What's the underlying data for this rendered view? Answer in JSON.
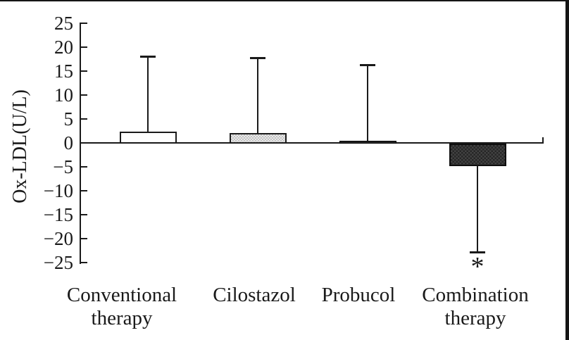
{
  "chart_data": {
    "type": "bar",
    "title": "",
    "xlabel": "",
    "ylabel": "Ox-LDL(U/L)",
    "ylim": [
      -25,
      25
    ],
    "ytick_step": 5,
    "yticks": [
      "25",
      "20",
      "15",
      "10",
      "5",
      "0",
      "−5",
      "−10",
      "−15",
      "−20",
      "−25"
    ],
    "categories": [
      "Conventional therapy",
      "Cilostazol",
      "Probucol",
      "Combination therapy"
    ],
    "category_lines": [
      [
        "Conventional",
        "therapy"
      ],
      [
        "Cilostazol"
      ],
      [
        "Probucol"
      ],
      [
        "Combination",
        "therapy"
      ]
    ],
    "values": [
      2.3,
      2.0,
      0.4,
      -4.7
    ],
    "error_upper": [
      18.1,
      17.8,
      16.3,
      null
    ],
    "error_lower": [
      null,
      null,
      null,
      -22.8
    ],
    "bar_styles": [
      "white",
      "light-stipple",
      "dark",
      "dark-stipple"
    ],
    "annotations": [
      {
        "text": "*",
        "category": "Combination therapy",
        "position": "below-lower-error-bar"
      }
    ],
    "legend": null,
    "grid": false
  },
  "colors": {
    "background": "#ffffff",
    "axis": "#1a1a1a",
    "text": "#1a1a1a",
    "bar_white_fill": "#ffffff",
    "bar_light_fill": "#e9e9e9",
    "bar_light_dots": "#c4c4c4",
    "bar_dark_fill": "#262626",
    "bar_dark_dots": "#424242",
    "scan_border": "#151515"
  }
}
